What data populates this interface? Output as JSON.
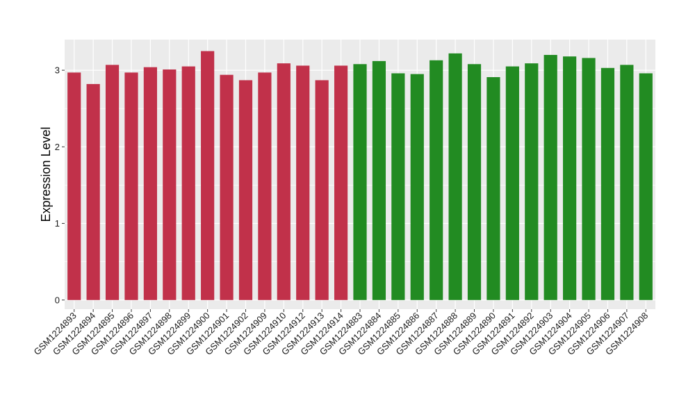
{
  "chart_data": {
    "type": "bar",
    "xlabel": "",
    "ylabel": "Expression Level",
    "ylim": [
      -0.12,
      3.4
    ],
    "yticks": [
      0,
      1,
      2,
      3
    ],
    "grid": true,
    "colors": {
      "red": "#c1314a",
      "green": "#228b22",
      "panel": "#ebebeb",
      "grid": "#ffffff"
    },
    "categories": [
      "GSM1224893",
      "GSM1224894",
      "GSM1224895",
      "GSM1224896",
      "GSM1224897",
      "GSM1224898",
      "GSM1224899",
      "GSM1224900",
      "GSM1224901",
      "GSM1224902",
      "GSM1224909",
      "GSM1224910",
      "GSM1224912",
      "GSM1224913",
      "GSM1224914",
      "GSM1224883",
      "GSM1224884",
      "GSM1224885",
      "GSM1224886",
      "GSM1224887",
      "GSM1224888",
      "GSM1224889",
      "GSM1224890",
      "GSM1224891",
      "GSM1224892",
      "GSM1224903",
      "GSM1224904",
      "GSM1224905",
      "GSM1224906",
      "GSM1224907",
      "GSM1224908"
    ],
    "values": [
      2.97,
      2.82,
      3.07,
      2.97,
      3.04,
      3.01,
      3.05,
      3.25,
      2.94,
      2.87,
      2.97,
      3.09,
      3.06,
      2.87,
      3.06,
      3.08,
      3.12,
      2.96,
      2.95,
      3.13,
      3.22,
      3.08,
      2.91,
      3.05,
      3.09,
      3.2,
      3.18,
      3.16,
      3.03,
      3.07,
      2.96
    ],
    "bar_colors": [
      "red",
      "red",
      "red",
      "red",
      "red",
      "red",
      "red",
      "red",
      "red",
      "red",
      "red",
      "red",
      "red",
      "red",
      "red",
      "green",
      "green",
      "green",
      "green",
      "green",
      "green",
      "green",
      "green",
      "green",
      "green",
      "green",
      "green",
      "green",
      "green",
      "green",
      "green"
    ]
  }
}
